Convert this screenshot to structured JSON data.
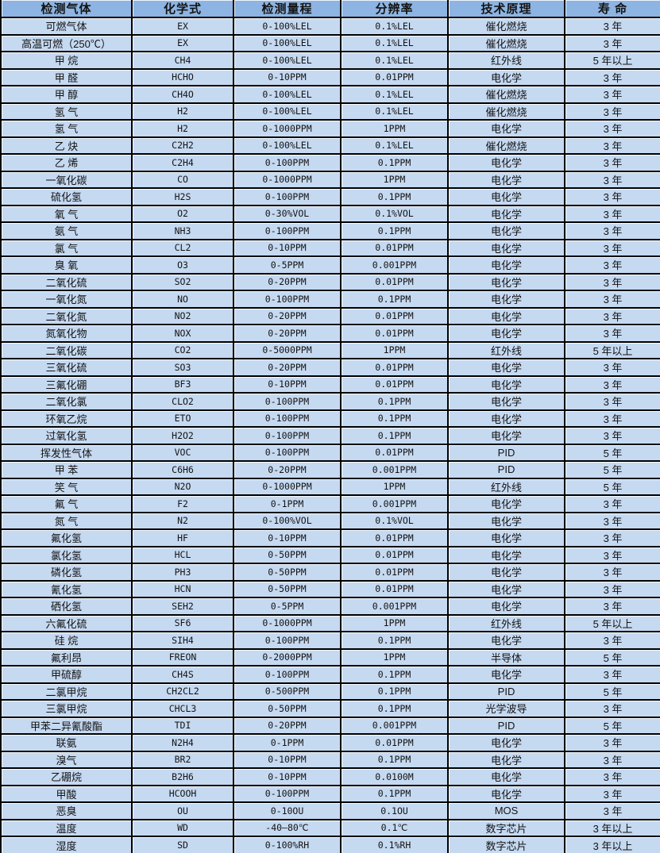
{
  "table": {
    "columns": [
      "检测气体",
      "化学式",
      "检测量程",
      "分辨率",
      "技术原理",
      "寿 命"
    ],
    "rows": [
      [
        "可燃气体",
        "EX",
        "0-100%LEL",
        "0.1%LEL",
        "催化燃烧",
        "3 年"
      ],
      [
        "高温可燃（250℃）",
        "EX",
        "0-100%LEL",
        "0.1%LEL",
        "催化燃烧",
        "3 年"
      ],
      [
        "甲 烷",
        "CH4",
        "0-100%LEL",
        "0.1%LEL",
        "红外线",
        "5 年以上"
      ],
      [
        "甲 醛",
        "HCHO",
        "0-10PPM",
        "0.01PPM",
        "电化学",
        "3 年"
      ],
      [
        "甲 醇",
        "CH4O",
        "0-100%LEL",
        "0.1%LEL",
        "催化燃烧",
        "3 年"
      ],
      [
        "氢 气",
        "H2",
        "0-100%LEL",
        "0.1%LEL",
        "催化燃烧",
        "3 年"
      ],
      [
        "氢 气",
        "H2",
        "0-1000PPM",
        "1PPM",
        "电化学",
        "3 年"
      ],
      [
        "乙 炔",
        "C2H2",
        "0-100%LEL",
        "0.1%LEL",
        "催化燃烧",
        "3 年"
      ],
      [
        "乙 烯",
        "C2H4",
        "0-100PPM",
        "0.1PPM",
        "电化学",
        "3 年"
      ],
      [
        "一氧化碳",
        "CO",
        "0-1000PPM",
        "1PPM",
        "电化学",
        "3 年"
      ],
      [
        "硫化氢",
        "H2S",
        "0-100PPM",
        "0.1PPM",
        "电化学",
        "3 年"
      ],
      [
        "氧 气",
        "O2",
        "0-30%VOL",
        "0.1%VOL",
        "电化学",
        "3 年"
      ],
      [
        "氨 气",
        "NH3",
        "0-100PPM",
        "0.1PPM",
        "电化学",
        "3 年"
      ],
      [
        "氯 气",
        "CL2",
        "0-10PPM",
        "0.01PPM",
        "电化学",
        "3 年"
      ],
      [
        "臭 氧",
        "O3",
        "0-5PPM",
        "0.001PPM",
        "电化学",
        "3 年"
      ],
      [
        "二氧化硫",
        "SO2",
        "0-20PPM",
        "0.01PPM",
        "电化学",
        "3 年"
      ],
      [
        "一氧化氮",
        "NO",
        "0-100PPM",
        "0.1PPM",
        "电化学",
        "3 年"
      ],
      [
        "二氧化氮",
        "NO2",
        "0-20PPM",
        "0.01PPM",
        "电化学",
        "3 年"
      ],
      [
        "氮氧化物",
        "NOX",
        "0-20PPM",
        "0.01PPM",
        "电化学",
        "3 年"
      ],
      [
        "二氧化碳",
        "CO2",
        "0-5000PPM",
        "1PPM",
        "红外线",
        "5 年以上"
      ],
      [
        "三氧化硫",
        "SO3",
        "0-20PPM",
        "0.01PPM",
        "电化学",
        "3 年"
      ],
      [
        "三氟化硼",
        "BF3",
        "0-10PPM",
        "0.01PPM",
        "电化学",
        "3 年"
      ],
      [
        "二氧化氯",
        "CLO2",
        "0-100PPM",
        "0.1PPM",
        "电化学",
        "3 年"
      ],
      [
        "环氧乙烷",
        "ETO",
        "0-100PPM",
        "0.1PPM",
        "电化学",
        "3 年"
      ],
      [
        "过氧化氢",
        "H2O2",
        "0-100PPM",
        "0.1PPM",
        "电化学",
        "3 年"
      ],
      [
        "挥发性气体",
        "VOC",
        "0-100PPM",
        "0.01PPM",
        "PID",
        "5 年"
      ],
      [
        "甲 苯",
        "C6H6",
        "0-20PPM",
        "0.001PPM",
        "PID",
        "5 年"
      ],
      [
        "笑 气",
        "N2O",
        "0-1000PPM",
        "1PPM",
        "红外线",
        "5 年"
      ],
      [
        "氟 气",
        "F2",
        "0-1PPM",
        "0.001PPM",
        "电化学",
        "3 年"
      ],
      [
        "氮 气",
        "N2",
        "0-100%VOL",
        "0.1%VOL",
        "电化学",
        "3 年"
      ],
      [
        "氟化氢",
        "HF",
        "0-10PPM",
        "0.01PPM",
        "电化学",
        "3 年"
      ],
      [
        "氯化氢",
        "HCL",
        "0-50PPM",
        "0.01PPM",
        "电化学",
        "3 年"
      ],
      [
        "磷化氢",
        "PH3",
        "0-50PPM",
        "0.01PPM",
        "电化学",
        "3 年"
      ],
      [
        "氰化氢",
        "HCN",
        "0-50PPM",
        "0.01PPM",
        "电化学",
        "3 年"
      ],
      [
        "硒化氢",
        "SEH2",
        "0-5PPM",
        "0.001PPM",
        "电化学",
        "3 年"
      ],
      [
        "六氟化硫",
        "SF6",
        "0-1000PPM",
        "1PPM",
        "红外线",
        "5 年以上"
      ],
      [
        "硅 烷",
        "SIH4",
        "0-100PPM",
        "0.1PPM",
        "电化学",
        "3 年"
      ],
      [
        "氟利昂",
        "FREON",
        "0-2000PPM",
        "1PPM",
        "半导体",
        "5 年"
      ],
      [
        "甲硫醇",
        "CH4S",
        "0-100PPM",
        "0.1PPM",
        "电化学",
        "3 年"
      ],
      [
        "二氯甲烷",
        "CH2CL2",
        "0-500PPM",
        "0.1PPM",
        "PID",
        "5 年"
      ],
      [
        "三氯甲烷",
        "CHCL3",
        "0-50PPM",
        "0.1PPM",
        "光学波导",
        "3 年"
      ],
      [
        "甲苯二异氰酸酯",
        "TDI",
        "0-20PPM",
        "0.001PPM",
        "PID",
        "5 年"
      ],
      [
        "联氨",
        "N2H4",
        "0-1PPM",
        "0.01PPM",
        "电化学",
        "3 年"
      ],
      [
        "溴气",
        "BR2",
        "0-10PPM",
        "0.1PPM",
        "电化学",
        "3 年"
      ],
      [
        "乙硼烷",
        "B2H6",
        "0-10PPM",
        "0.0100M",
        "电化学",
        "3 年"
      ],
      [
        "甲酸",
        "HCOOH",
        "0-100PPM",
        "0.1PPM",
        "电化学",
        "3 年"
      ],
      [
        "恶臭",
        "OU",
        "0-10OU",
        "0.1OU",
        "MOS",
        "3 年"
      ],
      [
        "温度",
        "WD",
        "-40—80℃",
        "0.1℃",
        "数字芯片",
        "3 年以上"
      ],
      [
        "湿度",
        "SD",
        "0-100%RH",
        "0.1%RH",
        "数字芯片",
        "3 年以上"
      ]
    ],
    "colors": {
      "header_bg": "#8db4e2",
      "row_bg": "#c5d9f1",
      "border": "#000000",
      "text": "#141414"
    }
  }
}
